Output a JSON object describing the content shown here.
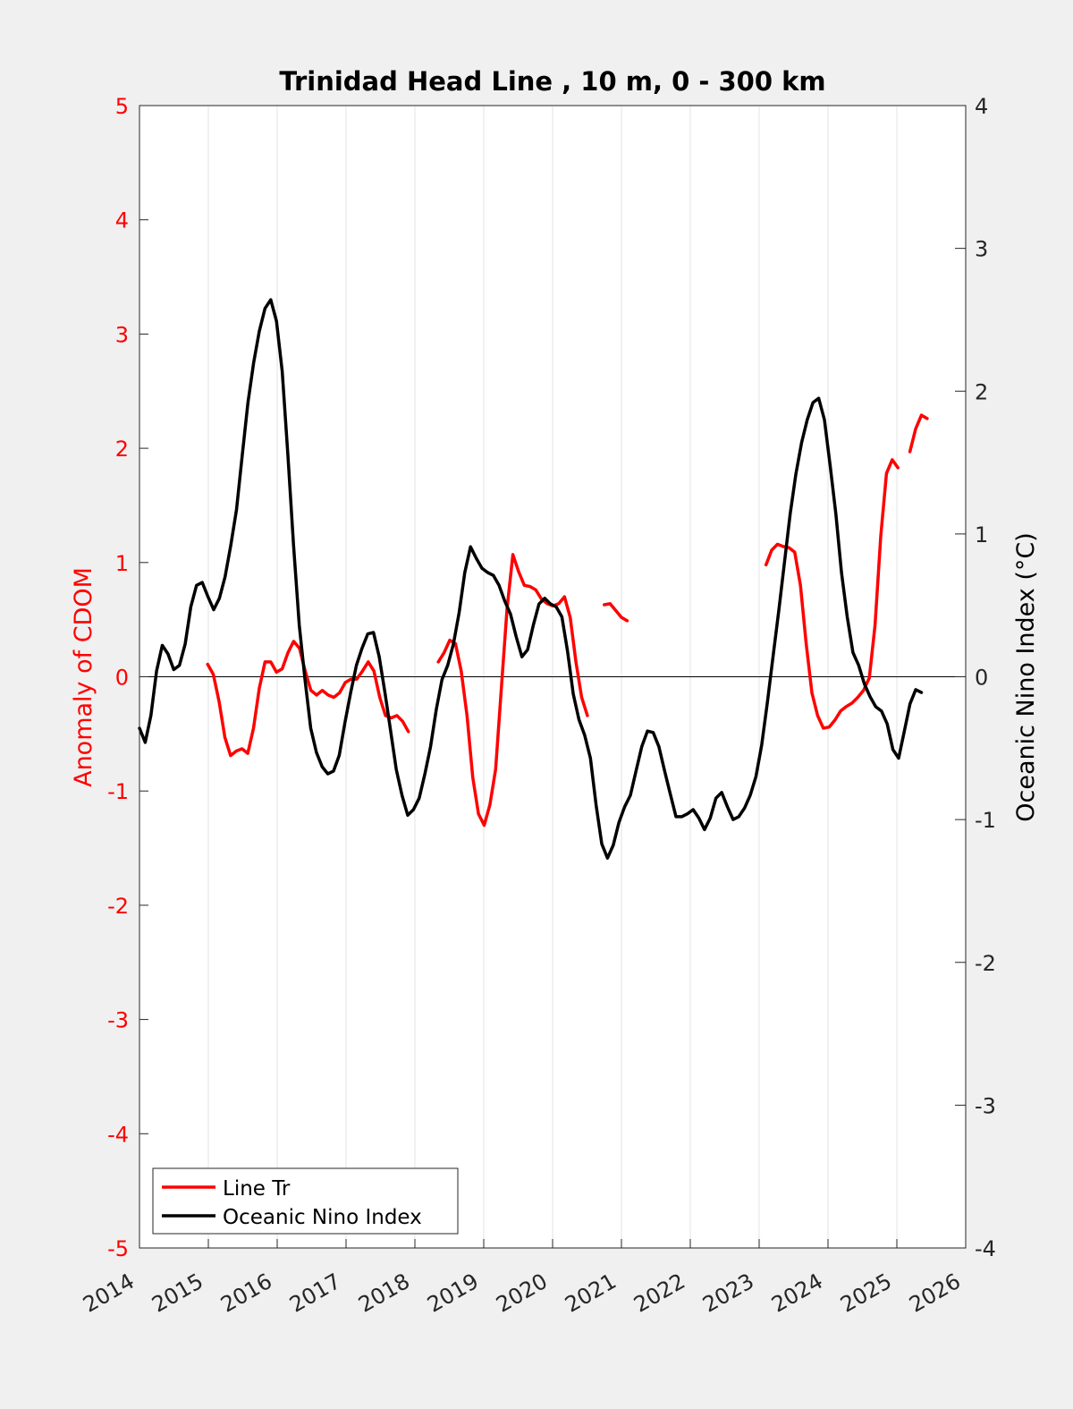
{
  "chart_data": {
    "type": "line",
    "title": "Trinidad Head Line , 10 m, 0 - 300 km",
    "xlabel": "",
    "ylabel_left": "Anomaly of CDOM",
    "ylabel_right": "Oceanic Nino Index (°C)",
    "xlim": [
      2014,
      2026
    ],
    "ylim_left": [
      -5,
      5
    ],
    "ylim_right": [
      -4,
      4
    ],
    "x_ticks": [
      "2014",
      "2015",
      "2016",
      "2017",
      "2018",
      "2019",
      "2020",
      "2021",
      "2022",
      "2023",
      "2024",
      "2025",
      "2026"
    ],
    "y_ticks_left": [
      "5",
      "4",
      "3",
      "2",
      "1",
      "0",
      "-1",
      "-2",
      "-3",
      "-4",
      "-5"
    ],
    "y_ticks_right": [
      "4",
      "3",
      "2",
      "1",
      "0",
      "-1",
      "-2",
      "-3",
      "-4"
    ],
    "grid": "vertical-x",
    "legend_position": "bottom-left",
    "colors": {
      "cdom": "#ff0000",
      "oni": "#000000",
      "left_axis": "#ff0000"
    },
    "series": [
      {
        "name": "Line Tr",
        "axis": "left",
        "x_step": 0.0833,
        "segments": [
          {
            "x_start": 2014.99,
            "values": [
              0.11,
              0.02,
              -0.22,
              -0.53,
              -0.69,
              -0.65,
              -0.63,
              -0.67,
              -0.45,
              -0.1,
              0.13,
              0.13,
              0.04,
              0.07,
              0.21,
              0.31,
              0.25,
              0.05,
              -0.12,
              -0.16,
              -0.12,
              -0.16,
              -0.18,
              -0.14,
              -0.05,
              -0.02,
              -0.02,
              0.05,
              0.13,
              0.05,
              -0.18,
              -0.34,
              -0.36,
              -0.34,
              -0.39,
              -0.48
            ]
          },
          {
            "x_start": 2018.34,
            "values": [
              0.13,
              0.21,
              0.32,
              0.29,
              0.05,
              -0.34,
              -0.88,
              -1.2,
              -1.3,
              -1.12,
              -0.81,
              -0.1,
              0.6,
              1.07,
              0.92,
              0.8,
              0.79,
              0.76,
              0.68,
              0.64,
              0.62,
              0.64,
              0.7,
              0.52,
              0.13,
              -0.18,
              -0.34
            ]
          },
          {
            "x_start": 2020.75,
            "values": [
              0.63,
              0.64,
              0.58,
              0.52,
              0.49
            ]
          },
          {
            "x_start": 2023.1,
            "values": [
              0.98,
              1.11,
              1.16,
              1.14,
              1.13,
              1.09,
              0.8,
              0.29,
              -0.14,
              -0.34,
              -0.45,
              -0.44,
              -0.38,
              -0.3,
              -0.26,
              -0.23,
              -0.18,
              -0.12,
              -0.01,
              0.45,
              1.23,
              1.78,
              1.9,
              1.83
            ]
          },
          {
            "x_start": 2025.19,
            "values": [
              1.97,
              2.17,
              2.29,
              2.26
            ]
          }
        ]
      },
      {
        "name": "Oceanic Nino Index",
        "axis": "right",
        "x_step": 0.0829,
        "segments": [
          {
            "x_start": 2014.0,
            "values": [
              -0.36,
              -0.46,
              -0.27,
              0.04,
              0.22,
              0.16,
              0.05,
              0.08,
              0.23,
              0.49,
              0.64,
              0.66,
              0.56,
              0.47,
              0.55,
              0.7,
              0.92,
              1.17,
              1.55,
              1.92,
              2.2,
              2.42,
              2.58,
              2.64,
              2.49,
              2.14,
              1.55,
              0.92,
              0.36,
              -0.02,
              -0.36,
              -0.53,
              -0.63,
              -0.68,
              -0.66,
              -0.55,
              -0.32,
              -0.11,
              0.08,
              0.2,
              0.3,
              0.31,
              0.14,
              -0.11,
              -0.38,
              -0.65,
              -0.83,
              -0.97,
              -0.93,
              -0.85,
              -0.68,
              -0.49,
              -0.23,
              -0.02,
              0.08,
              0.23,
              0.45,
              0.73,
              0.91,
              0.83,
              0.76,
              0.73,
              0.71,
              0.64,
              0.53,
              0.44,
              0.28,
              0.14,
              0.19,
              0.36,
              0.51,
              0.55,
              0.51,
              0.49,
              0.42,
              0.18,
              -0.12,
              -0.3,
              -0.41,
              -0.57,
              -0.9,
              -1.17,
              -1.27,
              -1.18,
              -1.02,
              -0.91,
              -0.83,
              -0.66,
              -0.49,
              -0.38,
              -0.39,
              -0.49,
              -0.66,
              -0.82,
              -0.98,
              -0.98,
              -0.96,
              -0.93,
              -0.99,
              -1.07,
              -0.99,
              -0.85,
              -0.81,
              -0.91,
              -1.0,
              -0.98,
              -0.92,
              -0.83,
              -0.7,
              -0.48,
              -0.18,
              0.14,
              0.46,
              0.8,
              1.14,
              1.42,
              1.64,
              1.8,
              1.92,
              1.95,
              1.8,
              1.48,
              1.14,
              0.73,
              0.42,
              0.17,
              0.08,
              -0.05,
              -0.14,
              -0.21,
              -0.24,
              -0.33,
              -0.51,
              -0.57,
              -0.38,
              -0.19,
              -0.09,
              -0.11
            ]
          }
        ]
      }
    ]
  }
}
